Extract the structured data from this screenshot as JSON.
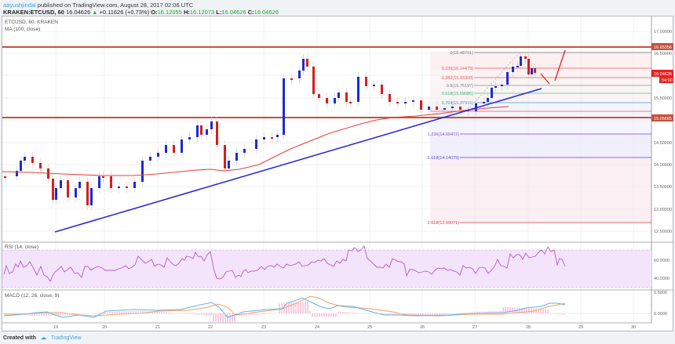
{
  "header": {
    "author": "aayushjindal",
    "published": "published on TradingView.com, August 28, 2017 02:06 UTC",
    "symbol": "KRAKEN:ETCUSD, 60",
    "last": "16.04626",
    "change": "+0.11626 (+0.73%)",
    "o_label": "O:",
    "o": "16.12055",
    "h_label": "H:",
    "h": "16.12073",
    "l_label": "L:",
    "l": "16.04626",
    "c_label": "C:",
    "c": "16.04626"
  },
  "legend": {
    "main": "ETCUSD, 60, KRAKEN",
    "ma": "MA (100, close)",
    "rsi": "RSI (14, close)",
    "macd": "MACD (12, 26, close, 9)"
  },
  "footer": {
    "created_with": "Created with",
    "brand": "TradingView"
  },
  "colors": {
    "up_candle": "#1e2bd0",
    "down_candle": "#d81e1e",
    "ma": "#e8403a",
    "trendline": "#2b2bd8",
    "horizontal": "#c8503c",
    "rsi": "#b45ac8",
    "macd": "#5ab4f0",
    "signal": "#f5a05a",
    "hist": "#f07cb4"
  },
  "chart_data": [
    {
      "type": "candlestick",
      "title": "ETCUSD, 60, KRAKEN",
      "xlabel": "",
      "ylabel": "",
      "x_ticks": [
        "19",
        "20",
        "21",
        "22",
        "23",
        "24",
        "25",
        "26",
        "27",
        "28",
        "29",
        "30"
      ],
      "y_ticks": [
        "17.00000",
        "16.50000",
        "15.50000",
        "14.50000",
        "14.00000",
        "13.50000",
        "13.00000",
        "12.50000"
      ],
      "ylim": [
        12.4,
        17.35
      ],
      "price_labels": [
        {
          "value": "16.65356",
          "role": "resistance line"
        },
        {
          "value": "16.04626",
          "role": "last price"
        },
        {
          "value": "54:00",
          "role": "bar countdown"
        },
        {
          "value": "15.05665",
          "role": "support line"
        }
      ],
      "fibonacci": [
        {
          "level": "0",
          "price": "16.48701"
        },
        {
          "level": "0.236",
          "price": "16.14479"
        },
        {
          "level": "0.382",
          "price": "15.93308"
        },
        {
          "level": "0.5",
          "price": "15.76197"
        },
        {
          "level": "0.618",
          "price": "15.59086"
        },
        {
          "level": "0.764",
          "price": "15.37915"
        },
        {
          "level": "1.236",
          "price": "14.69472"
        },
        {
          "level": "1.618",
          "price": "14.14079"
        },
        {
          "level": "2.618",
          "price": "12.69071"
        }
      ],
      "series": [
        {
          "name": "MA (100, close)",
          "points": [
            [
              0,
              13.8
            ],
            [
              60,
              13.7
            ],
            [
              130,
              13.72
            ],
            [
              200,
              13.74
            ],
            [
              250,
              13.9
            ],
            [
              280,
              13.78
            ],
            [
              320,
              14.1
            ],
            [
              360,
              14.45
            ],
            [
              400,
              14.8
            ],
            [
              440,
              15.05
            ],
            [
              480,
              15.25
            ],
            [
              520,
              15.35
            ],
            [
              560,
              15.4
            ],
            [
              600,
              15.5
            ],
            [
              640,
              15.6
            ],
            [
              650,
              15.62
            ]
          ]
        },
        {
          "name": "Trendline",
          "points": [
            [
              70,
              12.55
            ],
            [
              690,
              15.65
            ]
          ]
        }
      ],
      "grid": true
    },
    {
      "type": "line",
      "title": "RSI (14, close)",
      "y_ticks": [
        "60.0000",
        "40.0000"
      ],
      "ylim": [
        20,
        80
      ],
      "bands": [
        30,
        70
      ]
    },
    {
      "type": "line",
      "title": "MACD (12, 26, close, 9)",
      "y_ticks": [
        "0.5000",
        "0.0000"
      ],
      "series": [
        {
          "name": "MACD"
        },
        {
          "name": "Signal"
        },
        {
          "name": "Histogram"
        }
      ]
    }
  ]
}
